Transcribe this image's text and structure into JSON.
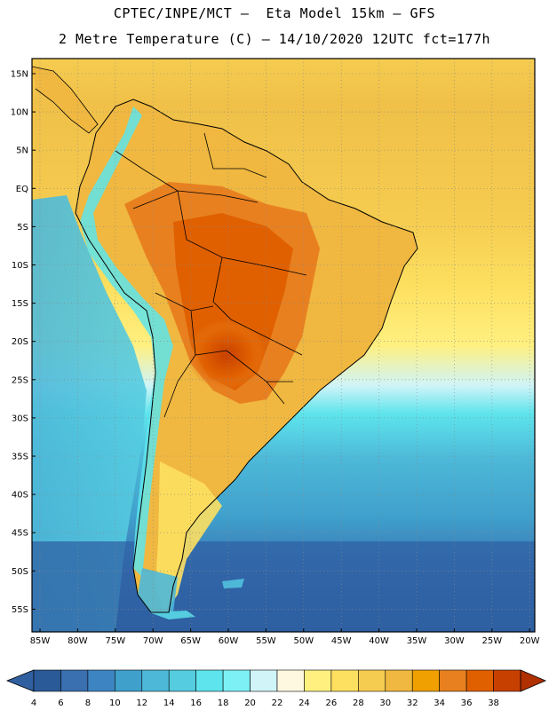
{
  "header": {
    "line1": "CPTEC/INPE/MCT –  Eta Model 15km – GFS",
    "line2": "2 Metre Temperature (C) – 14/10/2020 12UTC fct=177h"
  },
  "map": {
    "lat_labels": [
      "15N",
      "10N",
      "5N",
      "EQ",
      "5S",
      "10S",
      "15S",
      "20S",
      "25S",
      "30S",
      "35S",
      "40S",
      "45S",
      "50S",
      "55S"
    ],
    "lon_labels": [
      "85W",
      "80W",
      "75W",
      "70W",
      "65W",
      "60W",
      "55W",
      "50W",
      "45W",
      "40W",
      "35W",
      "30W",
      "25W",
      "20W"
    ]
  },
  "colorbar": {
    "labels": [
      "4",
      "6",
      "8",
      "10",
      "12",
      "14",
      "16",
      "18",
      "20",
      "22",
      "24",
      "26",
      "28",
      "30",
      "32",
      "34",
      "36",
      "38"
    ],
    "colors": [
      "#2a5a98",
      "#3a6fb0",
      "#3d85c2",
      "#3fa0cc",
      "#4db8d8",
      "#55cce0",
      "#5de4ec",
      "#7cf0f4",
      "#d0f4f8",
      "#fff8e0",
      "#fff080",
      "#fde060",
      "#f5cc50",
      "#f0b840",
      "#f0a000",
      "#e88020",
      "#e06000",
      "#c84000"
    ],
    "low_color": "#3060a0",
    "high_color": "#b03000"
  }
}
